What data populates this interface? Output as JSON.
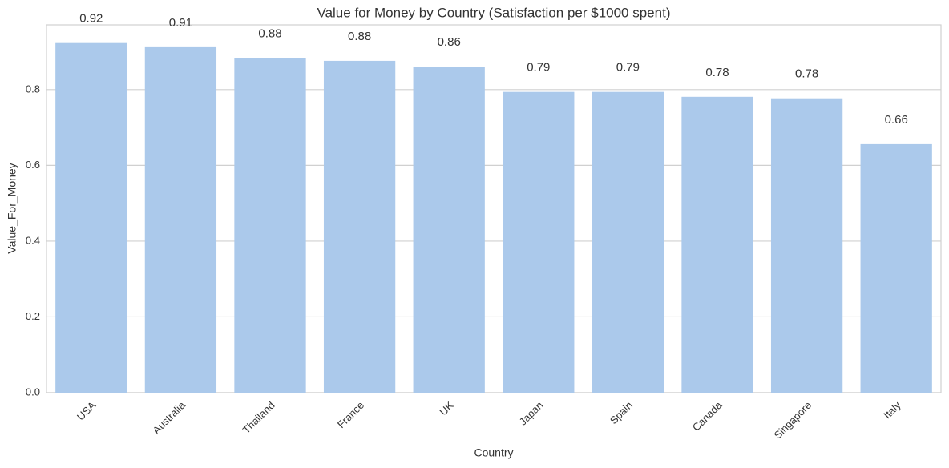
{
  "chart_data": {
    "type": "bar",
    "title": "Value for Money by Country (Satisfaction per $1000 spent)",
    "x_label": "Country",
    "y_label": "Value_For_Money",
    "categories": [
      "USA",
      "Australia",
      "Thailand",
      "France",
      "UK",
      "Japan",
      "Spain",
      "Canada",
      "Singapore",
      "Italy"
    ],
    "values": [
      0.923,
      0.912,
      0.883,
      0.876,
      0.861,
      0.794,
      0.794,
      0.781,
      0.777,
      0.656
    ],
    "value_labels": [
      "0.92",
      "0.91",
      "0.88",
      "0.88",
      "0.86",
      "0.79",
      "0.79",
      "0.78",
      "0.78",
      "0.66"
    ],
    "color": "#abc9eb",
    "ylim": [
      0,
      0.971
    ],
    "yticks": [
      {
        "value": 0,
        "label": "0.0"
      },
      0.2,
      0.4,
      0.6,
      0.8
    ],
    "grid": true
  }
}
